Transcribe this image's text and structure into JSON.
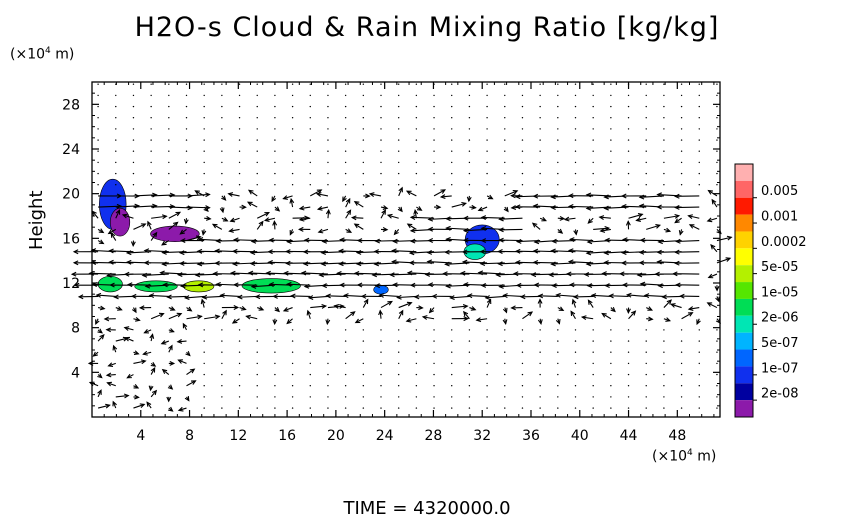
{
  "chart_data": {
    "type": "heatmap",
    "title": "H2O-s Cloud & Rain Mixing Ratio [kg/kg]",
    "ylabel": "Height",
    "x_unit": "(×10",
    "x_unit_exp": "4",
    "x_unit_tail": " m)",
    "y_unit": "(×10",
    "y_unit_exp": "4",
    "y_unit_tail": " m)",
    "footer": "TIME = 4320000.0",
    "xlim": [
      0,
      51.5
    ],
    "ylim": [
      0,
      30
    ],
    "x_ticks": [
      4,
      8,
      12,
      16,
      20,
      24,
      28,
      32,
      36,
      40,
      44,
      48
    ],
    "y_ticks": [
      4,
      8,
      12,
      16,
      20,
      24,
      28
    ],
    "colorbar": {
      "labels": [
        "0.005",
        "0.001",
        "0.0002",
        "5e-05",
        "1e-05",
        "2e-06",
        "5e-07",
        "1e-07",
        "2e-08"
      ],
      "colors": [
        "#ffb0b0",
        "#ff6666",
        "#ff1a00",
        "#ff8800",
        "#ffd200",
        "#ffff00",
        "#b4f000",
        "#55e600",
        "#00dd55",
        "#00e6b4",
        "#00b4ff",
        "#0066ff",
        "#1030ee",
        "#0000a0",
        "#8c1aaa"
      ]
    },
    "patches": [
      {
        "x": 0.6,
        "y": 16.8,
        "w": 2.2,
        "h": 4.5,
        "level": "1e-07"
      },
      {
        "x": 1.5,
        "y": 16.2,
        "w": 1.6,
        "h": 2.5,
        "level": "2e-08"
      },
      {
        "x": 4.8,
        "y": 15.7,
        "w": 4.0,
        "h": 1.4,
        "level": "2e-08"
      },
      {
        "x": 0.5,
        "y": 11.2,
        "w": 2.0,
        "h": 1.4,
        "level": "1e-05"
      },
      {
        "x": 3.5,
        "y": 11.2,
        "w": 3.5,
        "h": 1.0,
        "level": "1e-05"
      },
      {
        "x": 7.5,
        "y": 11.2,
        "w": 2.5,
        "h": 1.0,
        "level": "5e-05"
      },
      {
        "x": 12.3,
        "y": 11.1,
        "w": 4.8,
        "h": 1.3,
        "level": "1e-05"
      },
      {
        "x": 23.1,
        "y": 11.0,
        "w": 1.2,
        "h": 0.8,
        "level": "5e-07"
      },
      {
        "x": 30.6,
        "y": 14.6,
        "w": 2.8,
        "h": 2.6,
        "level": "1e-07"
      },
      {
        "x": 30.5,
        "y": 14.1,
        "w": 1.8,
        "h": 1.4,
        "level": "2e-06"
      }
    ],
    "flow_bands": [
      {
        "y": 19.0,
        "dir": "east",
        "x0": 0,
        "x1": 8,
        "strength": 0.9
      },
      {
        "y": 19.0,
        "dir": "west",
        "x0": 36,
        "x1": 51,
        "strength": 1.0
      },
      {
        "y": 17.5,
        "dir": "west",
        "x0": 28,
        "x1": 36,
        "strength": 0.9
      },
      {
        "y": 15.5,
        "dir": "west",
        "x0": 8,
        "x1": 51,
        "strength": 0.9
      },
      {
        "y": 14.5,
        "dir": "west",
        "x0": 0,
        "x1": 51,
        "strength": 1.0
      },
      {
        "y": 13.0,
        "dir": "west",
        "x0": 0,
        "x1": 51,
        "strength": 1.2
      },
      {
        "y": 12.0,
        "dir": "west",
        "x0": 0,
        "x1": 51,
        "strength": 0.9
      },
      {
        "y": 11.0,
        "dir": "west",
        "x0": 0,
        "x1": 51,
        "strength": 0.5
      }
    ]
  }
}
